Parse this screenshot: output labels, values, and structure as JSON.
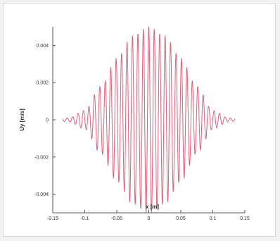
{
  "chart_data": {
    "type": "line",
    "title": "",
    "xlabel": "x [m]",
    "ylabel": "Uy [m/s]",
    "xlim": [
      -0.15,
      0.15
    ],
    "ylim": [
      -0.005,
      0.005
    ],
    "x_ticks": [
      -0.15,
      -0.1,
      -0.05,
      0,
      0.05,
      0.1,
      0.15
    ],
    "x_tick_labels": [
      "-0.15",
      "-0.1",
      "-0.05",
      "0",
      "0.05",
      "0.1",
      "0.15"
    ],
    "y_ticks": [
      -0.004,
      -0.002,
      0,
      0.002,
      0.004
    ],
    "y_tick_labels": [
      "-0.004",
      "-0.002",
      "0",
      "0.002",
      "0.004"
    ],
    "grid": false,
    "legend": "none",
    "series": [
      {
        "color": "#e0607a",
        "description_of_signal": "",
        "x": [
          -0.15,
          -0.125,
          -0.1,
          -0.075,
          -0.05,
          -0.025,
          0,
          0.025,
          0.05,
          0.075,
          0.1,
          0.125,
          0.15
        ],
        "envelope": [
          2e-05,
          0.0001,
          0.0005,
          0.0018,
          0.0033,
          0.0045,
          0.005,
          0.0045,
          0.0033,
          0.0018,
          0.0005,
          0.0001,
          2e-05
        ],
        "oscillation_wavelength": 0.0085
      }
    ]
  }
}
